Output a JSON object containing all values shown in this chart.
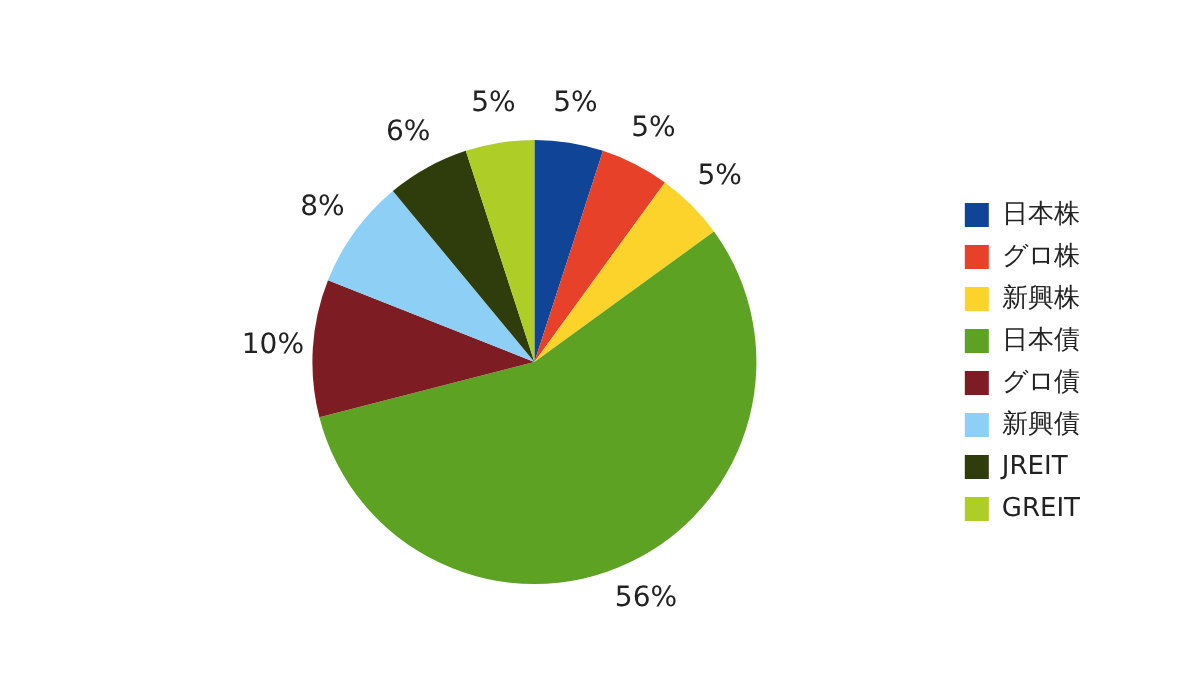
{
  "chart_data": {
    "type": "pie",
    "categories": [
      "日本株",
      "グロ株",
      "新興株",
      "日本債",
      "グロ債",
      "新興債",
      "JREIT",
      "GREIT"
    ],
    "values": [
      5,
      5,
      5,
      56,
      10,
      8,
      6,
      5
    ],
    "colors": [
      "#0f4496",
      "#e8412a",
      "#fcd32b",
      "#5ea224",
      "#7e1c24",
      "#8ecff5",
      "#2f3d0c",
      "#aecd26"
    ],
    "value_labels": [
      "5%",
      "5%",
      "5%",
      "56%",
      "10%",
      "8%",
      "6%",
      "5%"
    ],
    "legend": "right"
  }
}
